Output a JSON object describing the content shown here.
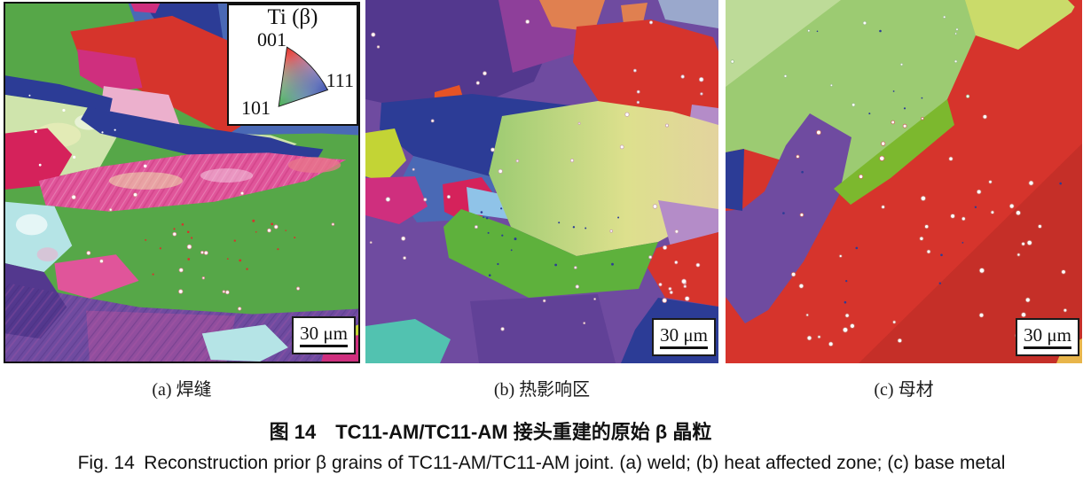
{
  "figure": {
    "caption_zh": "图 14 TC11-AM/TC11-AM 接头重建的原始 β 晶粒",
    "caption_en": "Fig. 14 Reconstruction prior β grains of TC11-AM/TC11-AM joint. (a) weld; (b) heat affected zone; (c) base metal",
    "panel_labels": [
      "(a) 焊缝",
      "(b) 热影响区",
      "(c) 母材"
    ],
    "scale_bar": "30 μm",
    "legend": {
      "title": "Ti (β)",
      "corner_001": "001",
      "corner_101": "101",
      "corner_111": "111"
    }
  },
  "palette": {
    "green_mid": "#56a748",
    "green_bright": "#5eb13c",
    "green_light": "#9ccb72",
    "green_pale": "#cfe4ac",
    "yellow_pale": "#dde08d",
    "yellow_green_light": "#cadb6a",
    "chartreuse": "#7cb82e",
    "yellow_green": "#c3d435",
    "gold": "#e8b54a",
    "red": "#d6342c",
    "red_dark": "#c52f28",
    "crimson": "#d5225b",
    "magenta": "#cf2f7e",
    "pink": "#e0559a",
    "pink_light": "#ecb0cd",
    "orange": "#e65325",
    "salmon": "#e08050",
    "navy": "#2c3c96",
    "blue_slate": "#4a69b5",
    "blue_grey": "#9aa8cc",
    "blue_light": "#8fc3e8",
    "teal": "#52c2b0",
    "cyan_pale": "#b5e4e6",
    "purple": "#6f4ba0",
    "violet_deep": "#53388e",
    "purple_magenta": "#8e3f9a",
    "lavender": "#b48cc8",
    "white": "#ffffff",
    "ipf_red": "#e0312a",
    "ipf_green": "#33a93c",
    "ipf_blue": "#2b3fa8"
  }
}
